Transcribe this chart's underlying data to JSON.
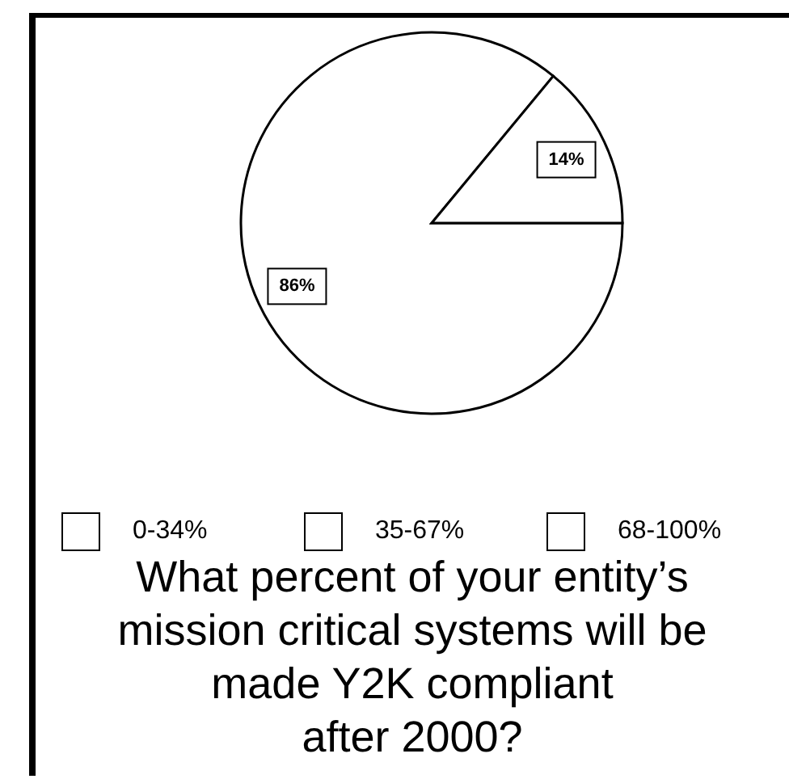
{
  "chart_data": {
    "type": "pie",
    "title": "What percent of your entity’s\nmission critical systems will be\nmade Y2K compliant\nafter 2000?",
    "categories": [
      "0-34%",
      "35-67%",
      "68-100%"
    ],
    "values": [
      86,
      14,
      0
    ],
    "colors": [
      "#ffffff",
      "#ffffff",
      "#ffffff"
    ],
    "value_labels": [
      "86%",
      "14%",
      null
    ],
    "legend": "bottom"
  }
}
